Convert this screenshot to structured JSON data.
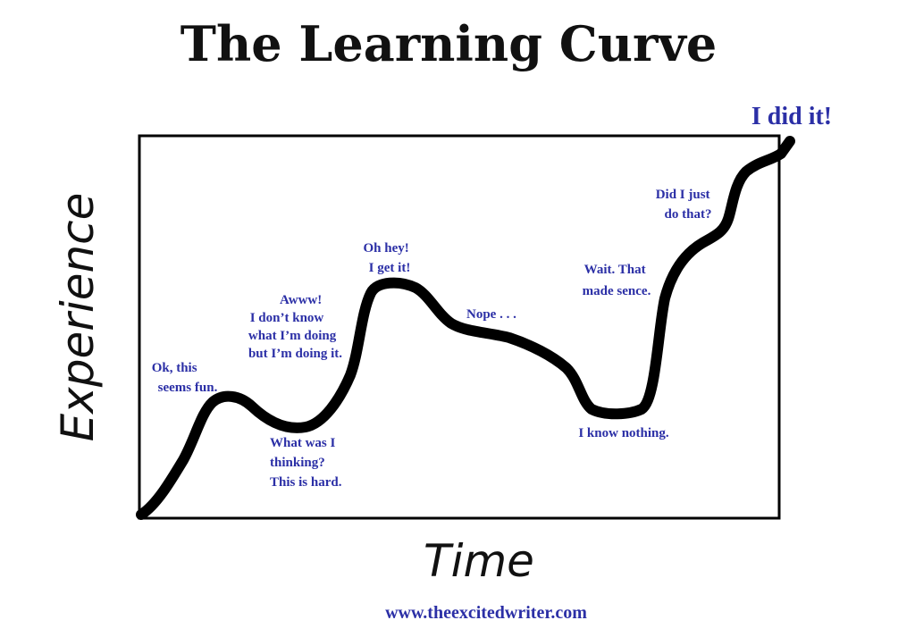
{
  "title": "The Learning Curve",
  "axes": {
    "xlabel": "Time",
    "ylabel": "Experience"
  },
  "annotations": {
    "ok_this_seems_fun": [
      "Ok, this",
      "seems fun."
    ],
    "what_was_i_thinking": [
      "What was I",
      "thinking?",
      "This is hard."
    ],
    "awww": [
      "Awww!",
      "I don’t know",
      "what I’m doing",
      "but I’m doing it."
    ],
    "oh_hey": [
      "Oh hey!",
      "I get it!"
    ],
    "nope": [
      "Nope . . ."
    ],
    "i_know_nothing": [
      "I know nothing."
    ],
    "wait_that": [
      "Wait. That",
      "made sence."
    ],
    "did_i_just": [
      "Did I just",
      "do that?"
    ],
    "i_did_it": [
      "I did it!"
    ]
  },
  "footer": {
    "url": "www.theexcitedwriter.com"
  },
  "colors": {
    "text_accent": "#2b2fa6",
    "curve": "#000000",
    "frame": "#000000"
  }
}
